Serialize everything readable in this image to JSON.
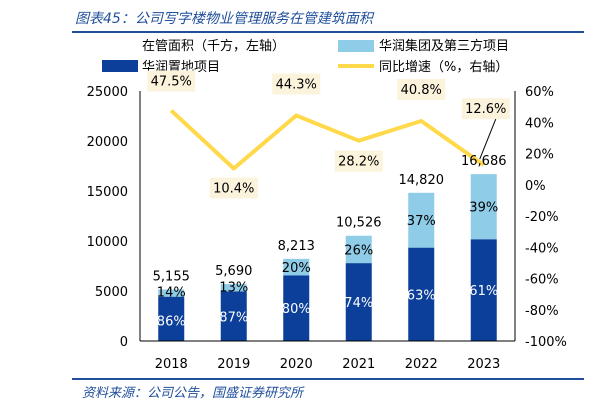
{
  "figure_title": "图表45：公司写字楼物业管理服务在管建筑面积",
  "source": "资料来源：公司公告，国盛证券研究所",
  "colors": {
    "own": "#0b3f99",
    "third": "#8fcce8",
    "yoy": "#ffd94a",
    "frame": "#1f4e9b",
    "yoy_label_bg": "#fbf3dc"
  },
  "chart_data": {
    "type": "bar",
    "stacked": true,
    "title": "",
    "legend_placement": "top",
    "categories": [
      "2018",
      "2019",
      "2020",
      "2021",
      "2022",
      "2023"
    ],
    "series": [
      {
        "name": "华润置地项目",
        "values": [
          4433,
          4950,
          6570,
          7789,
          9337,
          10178
        ],
        "share_labels": [
          "86%",
          "87%",
          "80%",
          "74%",
          "63%",
          "61%"
        ]
      },
      {
        "name": "华润集团及第三方项目",
        "values": [
          722,
          740,
          1643,
          2737,
          5483,
          6508
        ],
        "share_labels": [
          "14%",
          "13%",
          "20%",
          "26%",
          "37%",
          "39%"
        ]
      }
    ],
    "totals": [
      5155,
      5690,
      8213,
      10526,
      14820,
      16686
    ],
    "total_labels": [
      "5,155",
      "5,690",
      "8,213",
      "10,526",
      "14,820",
      "16,686"
    ],
    "line_series": {
      "name": "同比增速（%，右轴）",
      "values": [
        47.5,
        10.4,
        44.3,
        28.2,
        40.8,
        12.6
      ],
      "labels": [
        "47.5%",
        "10.4%",
        "44.3%",
        "28.2%",
        "40.8%",
        "12.6%"
      ]
    },
    "left_axis": {
      "label": "在管面积（千方，左轴）",
      "ylim": [
        0,
        25000
      ],
      "ticks": [
        "0",
        "5000",
        "10000",
        "15000",
        "20000",
        "25000"
      ]
    },
    "right_axis": {
      "ylim": [
        -100,
        60
      ],
      "ticks": [
        "-100%",
        "-80%",
        "-60%",
        "-40%",
        "-20%",
        "0%",
        "20%",
        "40%",
        "60%"
      ]
    },
    "grid": false
  }
}
